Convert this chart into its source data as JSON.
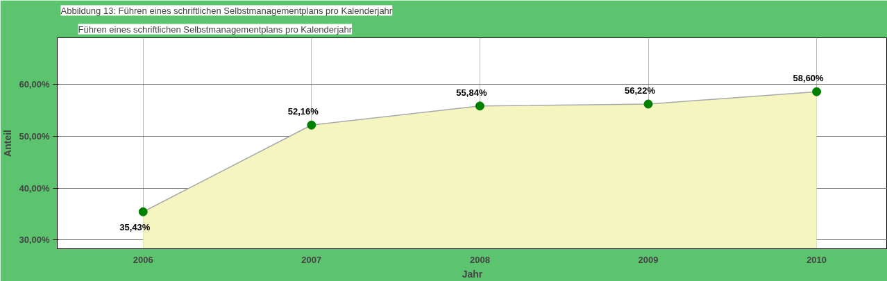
{
  "chart_data": {
    "type": "area",
    "title": "Führen eines schriftlichen Selbstmanagementplans pro Kalenderjahr",
    "annotations": [
      "Abbildung 13: Führen eines schriftlichen Selbstmanagementplans pro Kalenderjahr"
    ],
    "xlabel": "Jahr",
    "ylabel": "Anteil",
    "categories": [
      "2006",
      "2007",
      "2008",
      "2009",
      "2010"
    ],
    "series": [
      {
        "color": "#f5f5c0",
        "values": [
          35.43,
          52.16,
          55.84,
          56.22,
          58.6
        ],
        "value_labels": [
          "35,43%",
          "52,16%",
          "55,84%",
          "56,22%",
          "58,60%"
        ]
      }
    ],
    "ylim": [
      28.3,
      69
    ],
    "yticks": [
      {
        "value": 30,
        "label": "30,00%"
      },
      {
        "value": 40,
        "label": "40,00%"
      },
      {
        "value": 50,
        "label": "50,00%"
      },
      {
        "value": 60,
        "label": "60,00%"
      }
    ],
    "grid": true,
    "marker": "circle"
  }
}
